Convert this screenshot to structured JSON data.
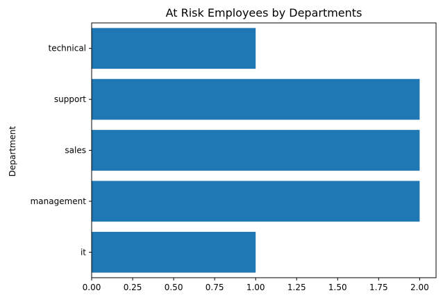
{
  "chart_data": {
    "type": "bar",
    "orientation": "horizontal",
    "title": "At Risk Employees by Departments",
    "xlabel": "",
    "ylabel": "Department",
    "categories": [
      "it",
      "management",
      "sales",
      "support",
      "technical"
    ],
    "values": [
      1,
      2,
      2,
      2,
      1
    ],
    "xlim": [
      0,
      2.1
    ],
    "xticks": [
      "0.00",
      "0.25",
      "0.50",
      "0.75",
      "1.00",
      "1.25",
      "1.50",
      "1.75",
      "2.00"
    ],
    "bar_color": "#1f77b4",
    "grid": false,
    "legend": false
  }
}
